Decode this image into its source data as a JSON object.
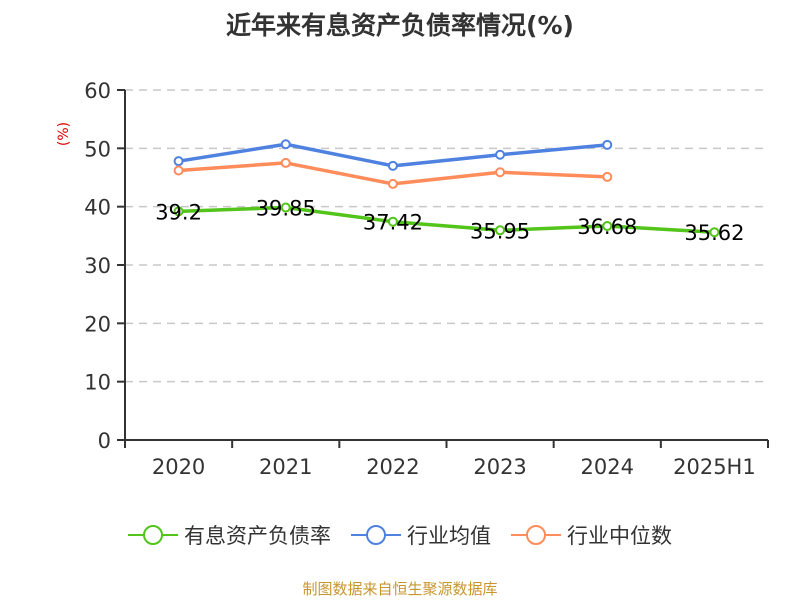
{
  "title": "近年来有息资产负债率情况(%)",
  "unit_label": "(%)",
  "source": "制图数据来自恒生聚源数据库",
  "legend": [
    {
      "label": "有息资产负债率",
      "color": "#52c41a"
    },
    {
      "label": "行业均值",
      "color": "#4f81e0"
    },
    {
      "label": "行业中位数",
      "color": "#ff8c5a"
    }
  ],
  "chart_data": {
    "type": "line",
    "title": "近年来有息资产负债率情况(%)",
    "xlabel": "",
    "ylabel": "(%)",
    "categories": [
      "2020",
      "2021",
      "2022",
      "2023",
      "2024",
      "2025H1"
    ],
    "ylim": [
      0,
      60
    ],
    "yticks": [
      0,
      10,
      20,
      30,
      40,
      50,
      60
    ],
    "grid": true,
    "legend_position": "bottom",
    "series": [
      {
        "name": "有息资产负债率",
        "color": "#52c41a",
        "values": [
          39.2,
          39.85,
          37.42,
          35.95,
          36.68,
          35.62
        ],
        "labels": [
          "39.2",
          "39.85",
          "37.42",
          "35.95",
          "36.68",
          "35.62"
        ]
      },
      {
        "name": "行业均值",
        "color": "#4f81e0",
        "values": [
          47.8,
          50.7,
          47.0,
          48.9,
          50.6,
          null
        ]
      },
      {
        "name": "行业中位数",
        "color": "#ff8c5a",
        "values": [
          46.2,
          47.5,
          43.9,
          45.9,
          45.1,
          null
        ]
      }
    ]
  }
}
